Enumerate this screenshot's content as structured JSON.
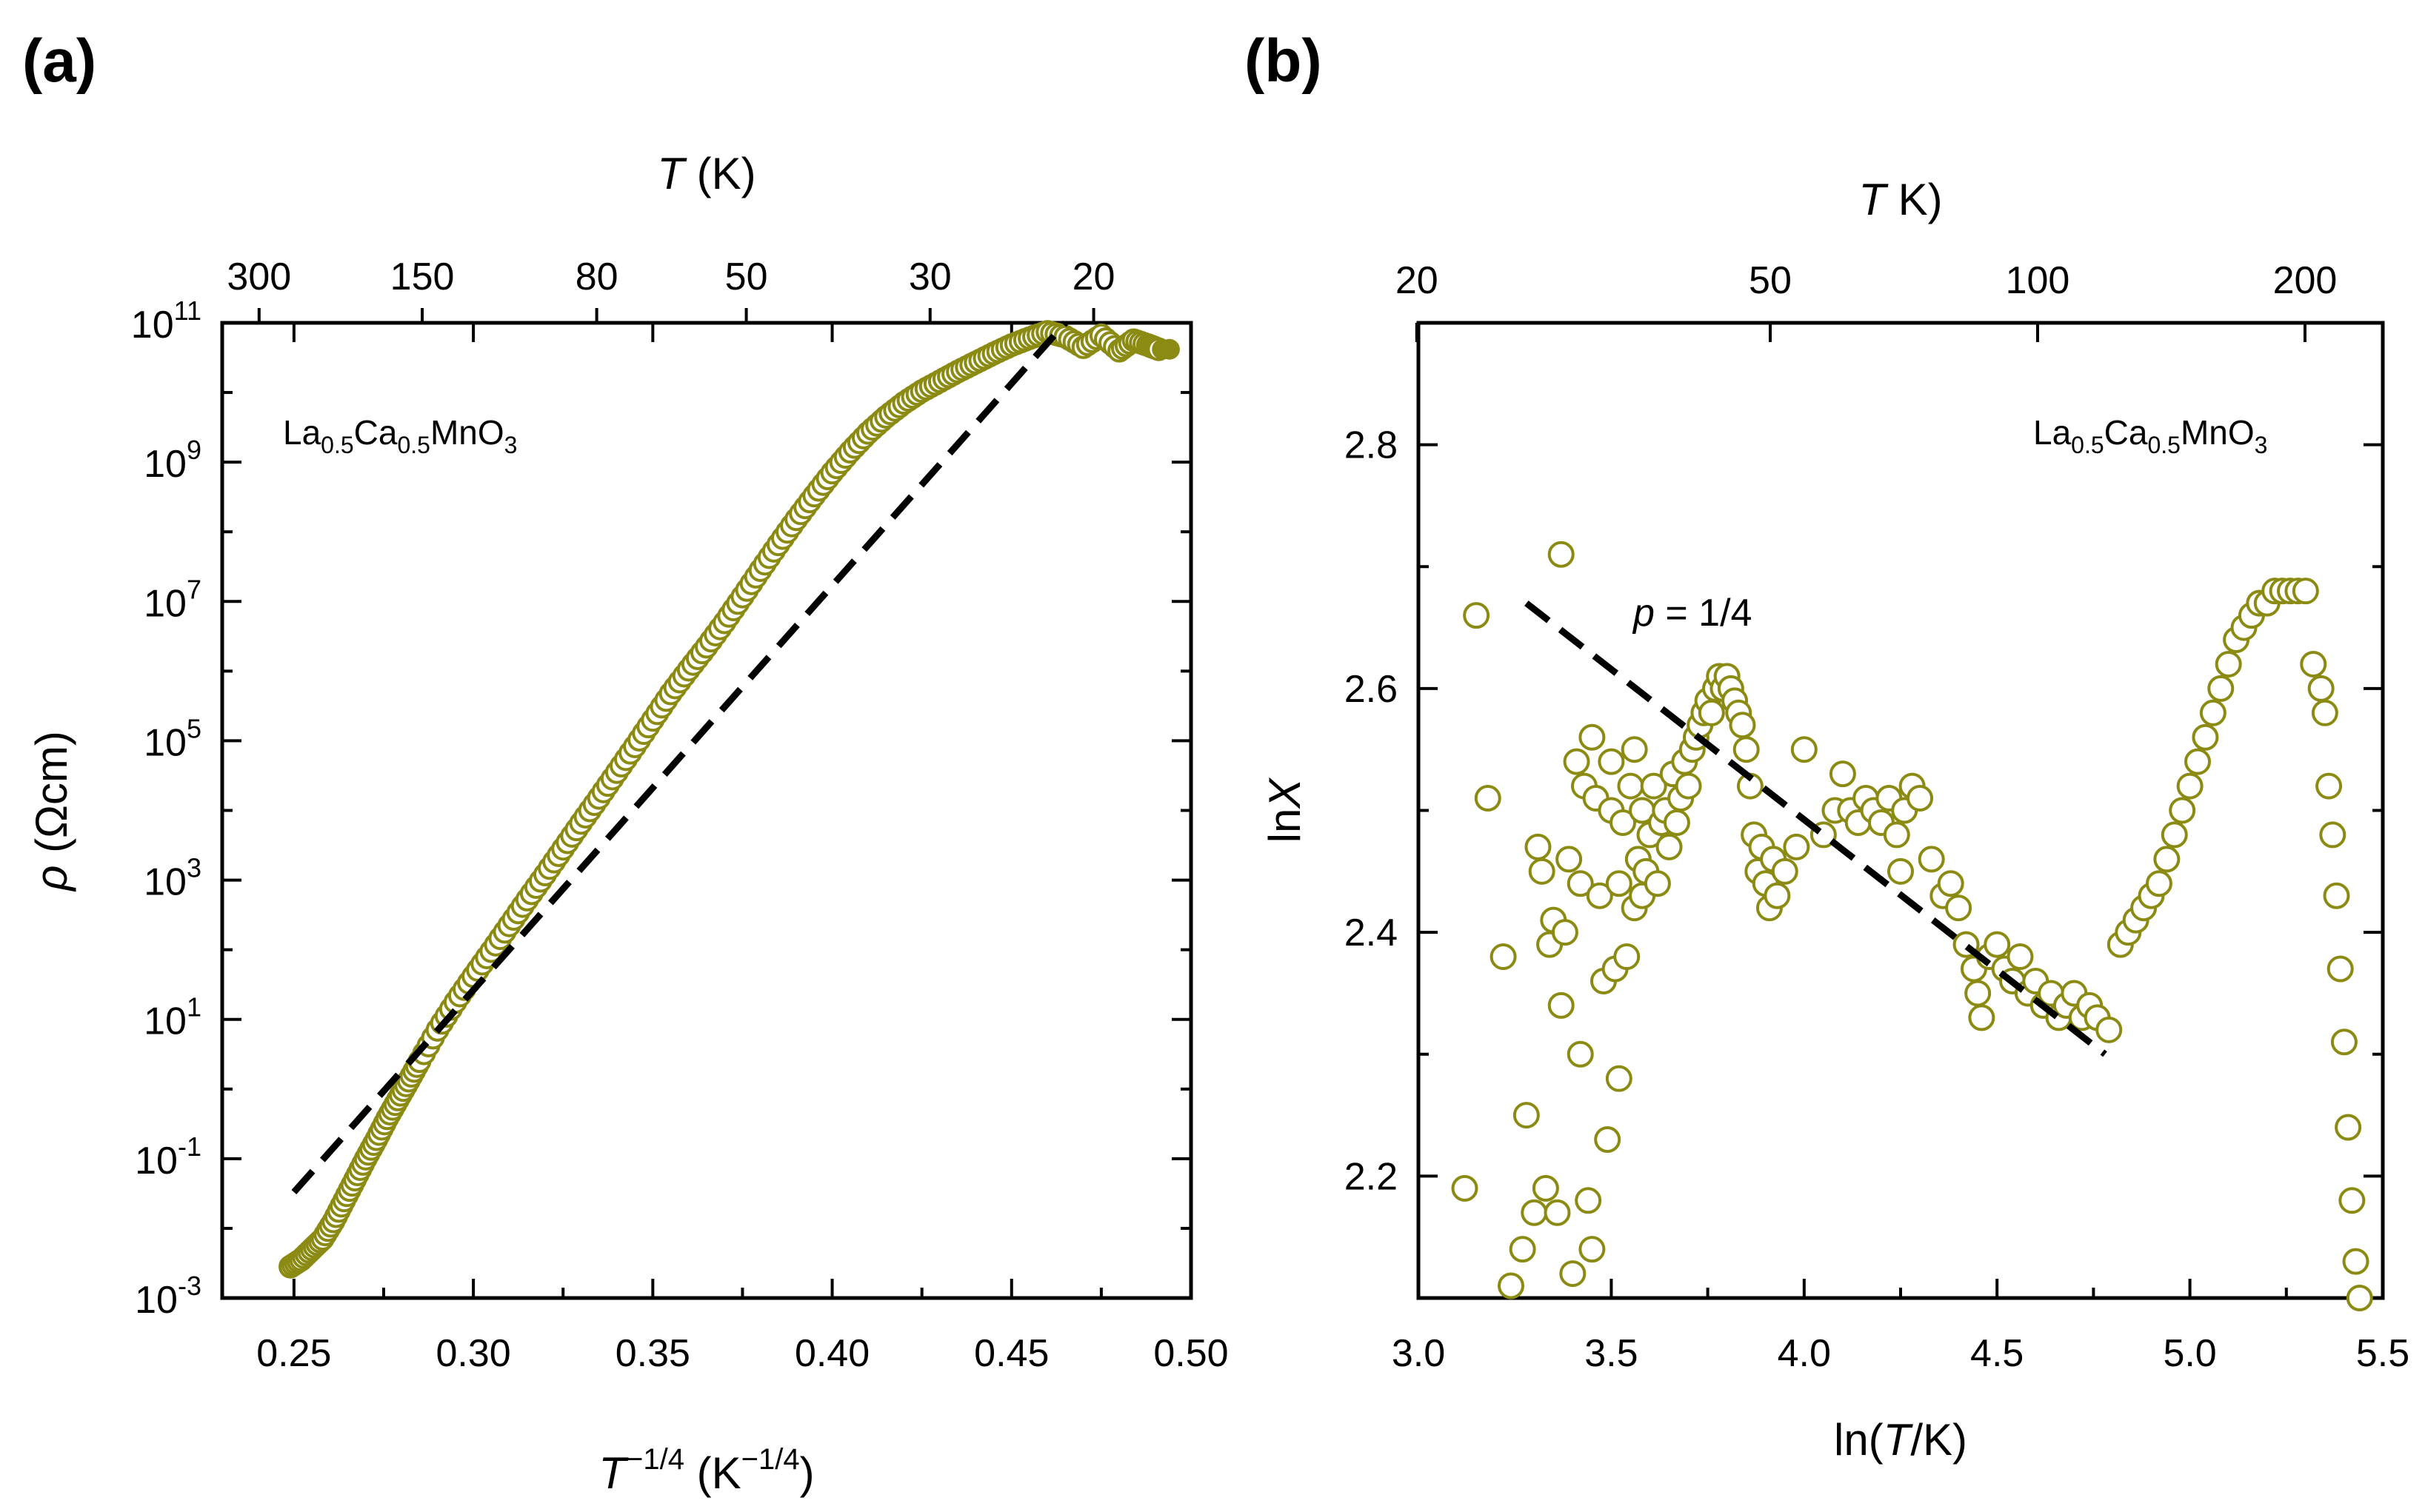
{
  "panels": {
    "a": {
      "label": "(a)"
    },
    "b": {
      "label": "(b)"
    }
  },
  "chart_data": [
    {
      "id": "a",
      "type": "scatter",
      "title": "",
      "label": "(a)",
      "annotation_base": "La",
      "annotation_subscript": "0.5",
      "annotation_base2": "Ca",
      "annotation_subscript2": "0.5",
      "annotation_base3": "MnO",
      "annotation_subscript3": "3",
      "xlabel_main": "T",
      "xlabel_exp": "−1/4",
      "xlabel_unit_open": " (K",
      "xlabel_unit_exp": "−1/4",
      "xlabel_unit_close": ")",
      "ylabel_symbol": "ρ",
      "ylabel_unit": " (Ωcm)",
      "top_axis_title_symbol": "T",
      "top_axis_title_unit": " (K)",
      "xlim": [
        0.23,
        0.5
      ],
      "ylim_log10": [
        -3,
        11
      ],
      "x_ticks": [
        {
          "value": 0.25,
          "label": "0.25"
        },
        {
          "value": 0.3,
          "label": "0.30"
        },
        {
          "value": 0.35,
          "label": "0.35"
        },
        {
          "value": 0.4,
          "label": "0.40"
        },
        {
          "value": 0.45,
          "label": "0.45"
        },
        {
          "value": 0.5,
          "label": "0.50"
        }
      ],
      "y_ticks": [
        {
          "exp": -3,
          "base": "10",
          "sup": "-3"
        },
        {
          "exp": -1,
          "base": "10",
          "sup": "-1"
        },
        {
          "exp": 1,
          "base": "10",
          "sup": "1"
        },
        {
          "exp": 3,
          "base": "10",
          "sup": "3"
        },
        {
          "exp": 5,
          "base": "10",
          "sup": "5"
        },
        {
          "exp": 7,
          "base": "10",
          "sup": "7"
        },
        {
          "exp": 9,
          "base": "10",
          "sup": "9"
        },
        {
          "exp": 11,
          "base": "10",
          "sup": "11"
        }
      ],
      "top_ticks": [
        {
          "T": 300,
          "label": "300"
        },
        {
          "T": 150,
          "label": "150"
        },
        {
          "T": 80,
          "label": "80"
        },
        {
          "T": 50,
          "label": "50"
        },
        {
          "T": 30,
          "label": "30"
        },
        {
          "T": 20,
          "label": "20"
        }
      ],
      "series": [
        {
          "name": "data",
          "marker": "open-circle",
          "color": "#8b8b13",
          "points": [
            [
              0.249,
              -2.55
            ],
            [
              0.252,
              -2.45
            ],
            [
              0.255,
              -2.3
            ],
            [
              0.258,
              -2.15
            ],
            [
              0.261,
              -1.9
            ],
            [
              0.264,
              -1.6
            ],
            [
              0.267,
              -1.3
            ],
            [
              0.27,
              -1.0
            ],
            [
              0.273,
              -0.72
            ],
            [
              0.276,
              -0.42
            ],
            [
              0.279,
              -0.15
            ],
            [
              0.282,
              0.12
            ],
            [
              0.285,
              0.4
            ],
            [
              0.29,
              0.85
            ],
            [
              0.295,
              1.25
            ],
            [
              0.3,
              1.62
            ],
            [
              0.305,
              1.98
            ],
            [
              0.31,
              2.35
            ],
            [
              0.315,
              2.72
            ],
            [
              0.32,
              3.08
            ],
            [
              0.325,
              3.45
            ],
            [
              0.33,
              3.82
            ],
            [
              0.335,
              4.18
            ],
            [
              0.34,
              4.55
            ],
            [
              0.345,
              4.92
            ],
            [
              0.35,
              5.3
            ],
            [
              0.355,
              5.68
            ],
            [
              0.36,
              6.02
            ],
            [
              0.365,
              6.35
            ],
            [
              0.37,
              6.7
            ],
            [
              0.375,
              7.07
            ],
            [
              0.38,
              7.45
            ],
            [
              0.385,
              7.82
            ],
            [
              0.39,
              8.18
            ],
            [
              0.395,
              8.52
            ],
            [
              0.4,
              8.85
            ],
            [
              0.405,
              9.15
            ],
            [
              0.41,
              9.42
            ],
            [
              0.415,
              9.65
            ],
            [
              0.42,
              9.85
            ],
            [
              0.425,
              10.02
            ],
            [
              0.43,
              10.16
            ],
            [
              0.435,
              10.3
            ],
            [
              0.44,
              10.43
            ],
            [
              0.445,
              10.56
            ],
            [
              0.45,
              10.68
            ],
            [
              0.455,
              10.78
            ],
            [
              0.46,
              10.87
            ],
            [
              0.465,
              10.8
            ],
            [
              0.47,
              10.65
            ],
            [
              0.475,
              10.82
            ],
            [
              0.48,
              10.6
            ],
            [
              0.484,
              10.75
            ],
            [
              0.488,
              10.68
            ],
            [
              0.491,
              10.62
            ]
          ]
        },
        {
          "name": "fit",
          "line": "dashed",
          "color": "#000000",
          "points": [
            [
              0.25,
              -1.48
            ],
            [
              0.465,
              11.0
            ]
          ]
        }
      ]
    },
    {
      "id": "b",
      "type": "scatter",
      "title": "",
      "label": "(b)",
      "annotation_base": "La",
      "annotation_subscript": "0.5",
      "annotation_base2": "Ca",
      "annotation_subscript2": "0.5",
      "annotation_base3": "MnO",
      "annotation_subscript3": "3",
      "fit_label_symbol": "p",
      "fit_label_value": " = 1/4",
      "xlabel_open": "ln(",
      "xlabel_symbol": "T",
      "xlabel_close": "/K)",
      "ylabel_base": "ln",
      "ylabel_symbol": "X",
      "top_axis_title_symbol": "T",
      "top_axis_title_unit": " K)",
      "top_axis_title_open": "(",
      "xlim": [
        3.0,
        5.5
      ],
      "ylim": [
        2.1,
        2.9
      ],
      "x_ticks": [
        {
          "value": 3.0,
          "label": "3.0"
        },
        {
          "value": 3.5,
          "label": "3.5"
        },
        {
          "value": 4.0,
          "label": "4.0"
        },
        {
          "value": 4.5,
          "label": "4.5"
        },
        {
          "value": 5.0,
          "label": "5.0"
        },
        {
          "value": 5.5,
          "label": "5.5"
        }
      ],
      "y_ticks": [
        {
          "value": 2.2,
          "label": "2.2"
        },
        {
          "value": 2.4,
          "label": "2.4"
        },
        {
          "value": 2.6,
          "label": "2.6"
        },
        {
          "value": 2.8,
          "label": "2.8"
        }
      ],
      "top_ticks": [
        {
          "T": 20,
          "label": "20"
        },
        {
          "T": 50,
          "label": "50"
        },
        {
          "T": 100,
          "label": "100"
        },
        {
          "T": 200,
          "label": "200"
        }
      ],
      "series": [
        {
          "name": "data",
          "marker": "open-circle",
          "color": "#8b8b13",
          "points": [
            [
              3.12,
              2.19
            ],
            [
              3.15,
              2.66
            ],
            [
              3.18,
              2.51
            ],
            [
              3.22,
              2.38
            ],
            [
              3.24,
              2.11
            ],
            [
              3.27,
              2.14
            ],
            [
              3.28,
              2.25
            ],
            [
              3.3,
              2.17
            ],
            [
              3.31,
              2.47
            ],
            [
              3.32,
              2.45
            ],
            [
              3.33,
              2.19
            ],
            [
              3.34,
              2.39
            ],
            [
              3.35,
              2.41
            ],
            [
              3.36,
              2.17
            ],
            [
              3.37,
              2.71
            ],
            [
              3.37,
              2.34
            ],
            [
              3.38,
              2.4
            ],
            [
              3.39,
              2.46
            ],
            [
              3.4,
              2.12
            ],
            [
              3.41,
              2.54
            ],
            [
              3.42,
              2.44
            ],
            [
              3.42,
              2.3
            ],
            [
              3.43,
              2.52
            ],
            [
              3.44,
              2.18
            ],
            [
              3.45,
              2.56
            ],
            [
              3.45,
              2.14
            ],
            [
              3.46,
              2.51
            ],
            [
              3.47,
              2.43
            ],
            [
              3.48,
              2.36
            ],
            [
              3.49,
              2.23
            ],
            [
              3.5,
              2.5
            ],
            [
              3.5,
              2.54
            ],
            [
              3.51,
              2.37
            ],
            [
              3.52,
              2.44
            ],
            [
              3.52,
              2.28
            ],
            [
              3.53,
              2.49
            ],
            [
              3.54,
              2.38
            ],
            [
              3.55,
              2.52
            ],
            [
              3.56,
              2.42
            ],
            [
              3.56,
              2.55
            ],
            [
              3.57,
              2.46
            ],
            [
              3.58,
              2.43
            ],
            [
              3.58,
              2.5
            ],
            [
              3.59,
              2.45
            ],
            [
              3.6,
              2.48
            ],
            [
              3.61,
              2.52
            ],
            [
              3.62,
              2.44
            ],
            [
              3.63,
              2.49
            ],
            [
              3.64,
              2.5
            ],
            [
              3.65,
              2.47
            ],
            [
              3.66,
              2.53
            ],
            [
              3.67,
              2.49
            ],
            [
              3.68,
              2.51
            ],
            [
              3.69,
              2.54
            ],
            [
              3.7,
              2.52
            ],
            [
              3.71,
              2.55
            ],
            [
              3.72,
              2.56
            ],
            [
              3.73,
              2.57
            ],
            [
              3.74,
              2.58
            ],
            [
              3.75,
              2.59
            ],
            [
              3.76,
              2.58
            ],
            [
              3.77,
              2.6
            ],
            [
              3.78,
              2.61
            ],
            [
              3.79,
              2.6
            ],
            [
              3.8,
              2.61
            ],
            [
              3.81,
              2.6
            ],
            [
              3.82,
              2.59
            ],
            [
              3.83,
              2.58
            ],
            [
              3.84,
              2.57
            ],
            [
              3.85,
              2.55
            ],
            [
              3.86,
              2.52
            ],
            [
              3.87,
              2.48
            ],
            [
              3.88,
              2.45
            ],
            [
              3.89,
              2.47
            ],
            [
              3.9,
              2.44
            ],
            [
              3.91,
              2.42
            ],
            [
              3.92,
              2.46
            ],
            [
              3.93,
              2.43
            ],
            [
              3.95,
              2.45
            ],
            [
              3.98,
              2.47
            ],
            [
              4.0,
              2.55
            ],
            [
              4.05,
              2.48
            ],
            [
              4.08,
              2.5
            ],
            [
              4.1,
              2.53
            ],
            [
              4.12,
              2.5
            ],
            [
              4.14,
              2.49
            ],
            [
              4.16,
              2.51
            ],
            [
              4.18,
              2.5
            ],
            [
              4.2,
              2.49
            ],
            [
              4.22,
              2.51
            ],
            [
              4.24,
              2.48
            ],
            [
              4.26,
              2.5
            ],
            [
              4.28,
              2.52
            ],
            [
              4.3,
              2.51
            ],
            [
              4.25,
              2.45
            ],
            [
              4.33,
              2.46
            ],
            [
              4.36,
              2.43
            ],
            [
              4.38,
              2.44
            ],
            [
              4.4,
              2.42
            ],
            [
              4.42,
              2.39
            ],
            [
              4.44,
              2.37
            ],
            [
              4.45,
              2.35
            ],
            [
              4.46,
              2.33
            ],
            [
              4.48,
              2.38
            ],
            [
              4.5,
              2.39
            ],
            [
              4.52,
              2.37
            ],
            [
              4.54,
              2.36
            ],
            [
              4.56,
              2.38
            ],
            [
              4.58,
              2.35
            ],
            [
              4.6,
              2.36
            ],
            [
              4.62,
              2.34
            ],
            [
              4.64,
              2.35
            ],
            [
              4.66,
              2.33
            ],
            [
              4.68,
              2.34
            ],
            [
              4.7,
              2.35
            ],
            [
              4.72,
              2.33
            ],
            [
              4.74,
              2.34
            ],
            [
              4.76,
              2.33
            ],
            [
              4.79,
              2.32
            ],
            [
              4.82,
              2.39
            ],
            [
              4.84,
              2.4
            ],
            [
              4.86,
              2.41
            ],
            [
              4.88,
              2.42
            ],
            [
              4.9,
              2.43
            ],
            [
              4.92,
              2.44
            ],
            [
              4.94,
              2.46
            ],
            [
              4.96,
              2.48
            ],
            [
              4.98,
              2.5
            ],
            [
              5.0,
              2.52
            ],
            [
              5.02,
              2.54
            ],
            [
              5.04,
              2.56
            ],
            [
              5.06,
              2.58
            ],
            [
              5.08,
              2.6
            ],
            [
              5.1,
              2.62
            ],
            [
              5.12,
              2.64
            ],
            [
              5.14,
              2.65
            ],
            [
              5.16,
              2.66
            ],
            [
              5.18,
              2.67
            ],
            [
              5.2,
              2.67
            ],
            [
              5.22,
              2.68
            ],
            [
              5.24,
              2.68
            ],
            [
              5.26,
              2.68
            ],
            [
              5.28,
              2.68
            ],
            [
              5.3,
              2.68
            ],
            [
              5.32,
              2.62
            ],
            [
              5.34,
              2.6
            ],
            [
              5.35,
              2.58
            ],
            [
              5.36,
              2.52
            ],
            [
              5.37,
              2.48
            ],
            [
              5.38,
              2.43
            ],
            [
              5.39,
              2.37
            ],
            [
              5.4,
              2.31
            ],
            [
              5.41,
              2.24
            ],
            [
              5.42,
              2.18
            ],
            [
              5.43,
              2.13
            ],
            [
              5.44,
              2.1
            ]
          ]
        },
        {
          "name": "fit",
          "line": "dashed",
          "color": "#000000",
          "points": [
            [
              3.28,
              2.67
            ],
            [
              4.78,
              2.3
            ]
          ]
        }
      ]
    }
  ]
}
